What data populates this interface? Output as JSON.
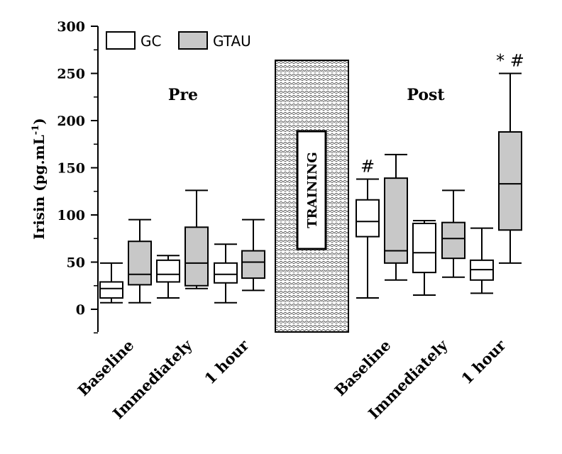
{
  "chart_data": {
    "type": "box",
    "ylabel": "Irisin (pg.mL",
    "ylabel_superscript": "-1",
    "ylabel_close": ")",
    "ylim": [
      -25,
      300
    ],
    "yticks": [
      0,
      50,
      100,
      150,
      200,
      250,
      300
    ],
    "ytick_labels": [
      "0",
      "50",
      "100",
      "150",
      "200",
      "250",
      "300"
    ],
    "legend": {
      "placement": "top-left",
      "entries": [
        {
          "name": "GC",
          "fill": "#ffffff"
        },
        {
          "name": "GTAU",
          "fill": "#c8c8c8"
        }
      ]
    },
    "phases": [
      {
        "label": "Pre"
      },
      {
        "label": "Post"
      }
    ],
    "training_label": "TRAINING",
    "categories": [
      {
        "phase": 0,
        "label": "Baseline"
      },
      {
        "phase": 0,
        "label": "Immediately"
      },
      {
        "phase": 0,
        "label": "1 hour"
      },
      {
        "phase": 1,
        "label": "Baseline"
      },
      {
        "phase": 1,
        "label": "Immediately"
      },
      {
        "phase": 1,
        "label": "1 hour"
      }
    ],
    "series": [
      {
        "name": "GC",
        "boxes": [
          {
            "min": 7,
            "q1": 12,
            "median": 22,
            "q3": 29,
            "max": 49
          },
          {
            "min": 12,
            "q1": 29,
            "median": 37,
            "q3": 52,
            "max": 57
          },
          {
            "min": 7,
            "q1": 28,
            "median": 37,
            "q3": 49,
            "max": 69
          },
          {
            "min": 12,
            "q1": 77,
            "median": 93,
            "q3": 116,
            "max": 138
          },
          {
            "min": 15,
            "q1": 39,
            "median": 60,
            "q3": 91,
            "max": 94
          },
          {
            "min": 17,
            "q1": 31,
            "median": 42,
            "q3": 52,
            "max": 86
          }
        ]
      },
      {
        "name": "GTAU",
        "boxes": [
          {
            "min": 7,
            "q1": 26,
            "median": 37,
            "q3": 72,
            "max": 95
          },
          {
            "min": 22,
            "q1": 25,
            "median": 49,
            "q3": 87,
            "max": 126
          },
          {
            "min": 20,
            "q1": 33,
            "median": 50,
            "q3": 62,
            "max": 95
          },
          {
            "min": 31,
            "q1": 49,
            "median": 62,
            "q3": 139,
            "max": 164
          },
          {
            "min": 34,
            "q1": 54,
            "median": 75,
            "q3": 92,
            "max": 126
          },
          {
            "min": 49,
            "q1": 84,
            "median": 133,
            "q3": 188,
            "max": 250
          }
        ]
      }
    ],
    "annotations": [
      {
        "category": 3,
        "series": 0,
        "text": "#"
      },
      {
        "category": 5,
        "series": 1,
        "text": "* #"
      }
    ]
  }
}
